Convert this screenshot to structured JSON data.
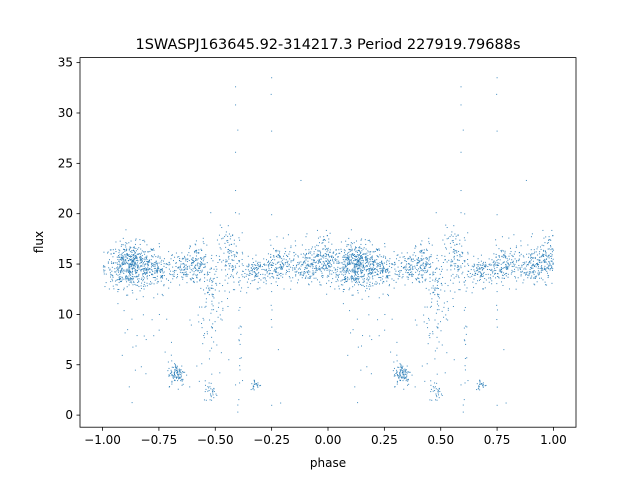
{
  "chart_data": {
    "type": "scatter",
    "title": "1SWASPJ163645.92-314217.3 Period 227919.79688s",
    "xlabel": "phase",
    "ylabel": "flux",
    "xlim": [
      -1.1,
      1.1
    ],
    "ylim": [
      -1.2,
      35.5
    ],
    "xticks": [
      -1.0,
      -0.75,
      -0.5,
      -0.25,
      0.0,
      0.25,
      0.5,
      0.75,
      1.0
    ],
    "xtick_labels": [
      "−1.00",
      "−0.75",
      "−0.50",
      "−0.25",
      "0.00",
      "0.25",
      "0.50",
      "0.75",
      "1.00"
    ],
    "yticks": [
      0,
      5,
      10,
      15,
      20,
      25,
      30,
      35
    ],
    "ytick_labels": [
      "0",
      "5",
      "10",
      "15",
      "20",
      "25",
      "30",
      "35"
    ],
    "grid": false,
    "marker_color": "#1f77b4",
    "phase_range": [
      -1.0,
      1.0
    ],
    "folding": "each observation plotted at phase p and p+1 (or p-1)",
    "clusters": [
      {
        "x_center": -0.87,
        "x_spread": 0.06,
        "y_center": 14.8,
        "y_spread": 1.1,
        "count": 600
      },
      {
        "x_center": -0.75,
        "x_spread": 0.03,
        "y_center": 14.3,
        "y_spread": 0.8,
        "count": 80
      },
      {
        "x_center": -0.64,
        "x_spread": 0.04,
        "y_center": 14.7,
        "y_spread": 0.8,
        "count": 160
      },
      {
        "x_center": -0.57,
        "x_spread": 0.02,
        "y_center": 15.2,
        "y_spread": 1.1,
        "count": 60
      },
      {
        "x_center": -0.52,
        "x_spread": 0.025,
        "y_center": 12.5,
        "y_spread": 2.0,
        "count": 90
      },
      {
        "x_center": -0.43,
        "x_spread": 0.03,
        "y_center": 15.5,
        "y_spread": 1.5,
        "count": 120
      },
      {
        "x_center": -0.31,
        "x_spread": 0.04,
        "y_center": 14.2,
        "y_spread": 0.7,
        "count": 130
      },
      {
        "x_center": -0.21,
        "x_spread": 0.04,
        "y_center": 15.0,
        "y_spread": 1.0,
        "count": 130
      },
      {
        "x_center": -0.09,
        "x_spread": 0.05,
        "y_center": 14.8,
        "y_spread": 0.8,
        "count": 200
      },
      {
        "x_center": -0.02,
        "x_spread": 0.03,
        "y_center": 15.8,
        "y_spread": 1.2,
        "count": 120
      },
      {
        "x_center": -0.67,
        "x_spread": 0.02,
        "y_center": 4.1,
        "y_spread": 0.6,
        "count": 100
      },
      {
        "x_center": -0.52,
        "x_spread": 0.015,
        "y_center": 2.3,
        "y_spread": 0.5,
        "count": 30
      },
      {
        "x_center": -0.32,
        "x_spread": 0.012,
        "y_center": 3.0,
        "y_spread": 0.3,
        "count": 25
      },
      {
        "x_center": -0.39,
        "x_spread": 0.004,
        "y_center": 10.0,
        "y_spread": 8.0,
        "count": 25
      },
      {
        "x_center": -0.25,
        "x_spread": 0.004,
        "y_center": 12.0,
        "y_spread": 8.0,
        "count": 12
      },
      {
        "x_center": -0.82,
        "x_spread": 0.08,
        "y_center": 8.0,
        "y_spread": 2.5,
        "count": 30
      },
      {
        "x_center": -0.54,
        "x_spread": 0.05,
        "y_center": 8.0,
        "y_spread": 3.0,
        "count": 25
      }
    ],
    "outliers": [
      {
        "x": -0.41,
        "y": 32.6
      },
      {
        "x": -0.41,
        "y": 30.8
      },
      {
        "x": -0.4,
        "y": 28.3
      },
      {
        "x": -0.41,
        "y": 26.1
      },
      {
        "x": -0.41,
        "y": 22.3
      },
      {
        "x": -0.41,
        "y": 20.1
      },
      {
        "x": -0.25,
        "y": 33.5
      },
      {
        "x": -0.25,
        "y": 28.2
      },
      {
        "x": -0.25,
        "y": 19.9
      },
      {
        "x": -0.12,
        "y": 23.3
      },
      {
        "x": -0.52,
        "y": 20.1
      },
      {
        "x": -0.4,
        "y": 0.3
      },
      {
        "x": -0.4,
        "y": 1.0
      },
      {
        "x": -0.41,
        "y": 3.0
      },
      {
        "x": -0.21,
        "y": 1.2
      },
      {
        "x": -0.56,
        "y": 5.1
      },
      {
        "x": -0.48,
        "y": 4.2
      },
      {
        "x": -0.44,
        "y": 5.5
      },
      {
        "x": -0.22,
        "y": 6.5
      }
    ]
  }
}
